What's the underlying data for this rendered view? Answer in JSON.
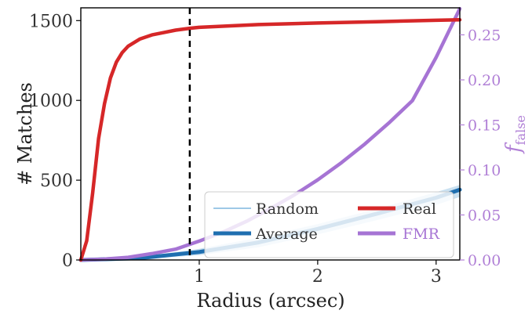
{
  "chart_data": {
    "type": "line",
    "xlabel": "Radius (arcsec)",
    "ylabel": "# Matches",
    "ylabel_right_main": "f",
    "ylabel_right_sub": "false",
    "xlim": [
      0.0,
      3.2
    ],
    "ylim": [
      0,
      1580
    ],
    "ylim_right": [
      0.0,
      0.28
    ],
    "x_ticks": [
      1,
      2,
      3
    ],
    "x_tick_labels": [
      "1",
      "2",
      "3"
    ],
    "y_ticks": [
      0,
      500,
      1000,
      1500
    ],
    "y_tick_labels": [
      "0",
      "500",
      "1000",
      "1500"
    ],
    "y2_ticks": [
      0.0,
      0.05,
      0.1,
      0.15,
      0.2,
      0.25
    ],
    "y2_tick_labels": [
      "0.00",
      "0.05",
      "0.10",
      "0.15",
      "0.20",
      "0.25"
    ],
    "vline_x": 0.92,
    "grid": false,
    "legend_position": "lower-right",
    "series": [
      {
        "name": "Real",
        "axis": "left",
        "color": "#d62728",
        "x": [
          0.0,
          0.05,
          0.1,
          0.15,
          0.2,
          0.25,
          0.3,
          0.35,
          0.4,
          0.5,
          0.6,
          0.7,
          0.8,
          0.92,
          1.0,
          1.5,
          2.0,
          2.5,
          3.0,
          3.2
        ],
        "y": [
          0,
          120,
          420,
          760,
          980,
          1140,
          1240,
          1300,
          1340,
          1385,
          1410,
          1425,
          1440,
          1452,
          1458,
          1475,
          1485,
          1493,
          1502,
          1505
        ]
      },
      {
        "name": "FMR",
        "axis": "right",
        "color": "#a674d4",
        "x": [
          0.0,
          0.2,
          0.4,
          0.6,
          0.8,
          1.0,
          1.2,
          1.4,
          1.6,
          1.8,
          2.0,
          2.2,
          2.4,
          2.6,
          2.8,
          3.0,
          3.2
        ],
        "y": [
          0.0,
          0.001,
          0.003,
          0.007,
          0.012,
          0.021,
          0.031,
          0.043,
          0.057,
          0.072,
          0.089,
          0.108,
          0.129,
          0.152,
          0.177,
          0.225,
          0.279
        ]
      },
      {
        "name": "Average",
        "axis": "left",
        "color": "#1f6fb0",
        "x": [
          0.0,
          0.5,
          1.0,
          1.5,
          2.0,
          2.5,
          3.0,
          3.2
        ],
        "y": [
          0,
          12,
          50,
          110,
          195,
          290,
          390,
          440
        ]
      },
      {
        "name": "Random",
        "axis": "left",
        "color": "#9ec8e6",
        "x": [
          0.0,
          0.5,
          1.0,
          1.5,
          2.0,
          2.5,
          3.0,
          3.2
        ],
        "y_low": [
          0,
          5,
          30,
          80,
          160,
          250,
          345,
          395
        ],
        "y_high": [
          0,
          18,
          70,
          140,
          225,
          320,
          425,
          470
        ]
      }
    ]
  }
}
